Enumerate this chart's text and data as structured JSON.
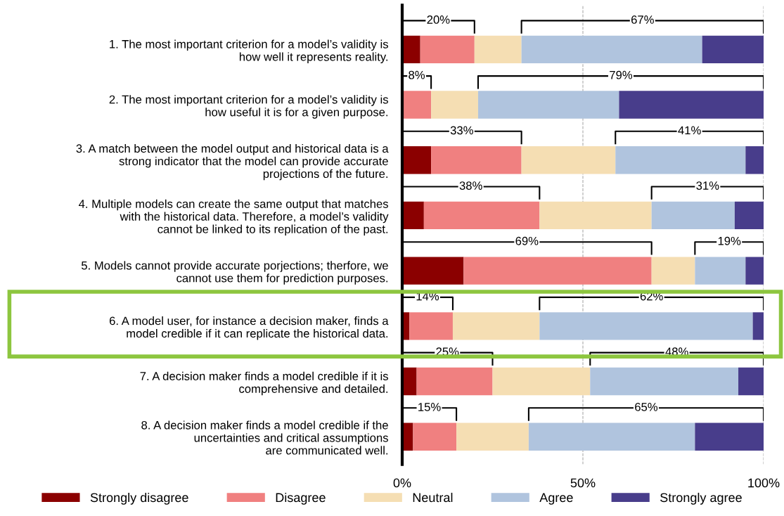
{
  "chart_data": {
    "type": "bar",
    "orientation": "horizontal",
    "stacked": true,
    "categories": [
      "1. The most important criterion for a model’s validity is\nhow well it represents reality.",
      "2. The most important criterion for a model’s validity is\nhow useful it is for a given purpose.",
      "3. A match between the model output and historical data is a\nstrong indicator that the model can provide accurate\nprojections of the future.",
      "4. Multiple models can create the same output that matches\nwith the historical data. Therefore, a model’s validity\ncannot be linked to its replication of the past.",
      "5. Models cannot provide accurate porjections; therfore, we\ncannot use them for prediction purposes.",
      "6. A model user, for instance a decision maker, finds a\nmodel credible if it can replicate the historical data.",
      "7. A decision maker finds a model credible if it is\ncomprehensive and detailed.",
      "8. A decision maker finds a model credible if the\nuncertainties and critical assumptions\nare communicated well."
    ],
    "series": [
      {
        "name": "Strongly disagree",
        "color": "#8b0000",
        "values": [
          5,
          0,
          8,
          6,
          17,
          2,
          4,
          3
        ]
      },
      {
        "name": "Disagree",
        "color": "#f08080",
        "values": [
          15,
          8,
          25,
          32,
          52,
          12,
          21,
          12
        ]
      },
      {
        "name": "Neutral",
        "color": "#f5deb3",
        "values": [
          13,
          13,
          26,
          31,
          12,
          24,
          27,
          20
        ]
      },
      {
        "name": "Agree",
        "color": "#b0c4de",
        "values": [
          50,
          39,
          36,
          23,
          14,
          59,
          41,
          46
        ]
      },
      {
        "name": "Strongly agree",
        "color": "#483d8b",
        "values": [
          17,
          40,
          5,
          8,
          5,
          3,
          7,
          19
        ]
      }
    ],
    "xlim": [
      0,
      100
    ],
    "xticks": [
      {
        "value": 0,
        "label": "0%"
      },
      {
        "value": 50,
        "label": "50%"
      },
      {
        "value": 100,
        "label": "100%"
      }
    ],
    "grid": "x",
    "legend": "bottom",
    "annotations": [
      "20%",
      "67%",
      "8%",
      "79%",
      "33%",
      "41%",
      "38%",
      "31%",
      "69%",
      "19%",
      "14%",
      "62%",
      "25%",
      "48%",
      "15%",
      "65%"
    ]
  }
}
